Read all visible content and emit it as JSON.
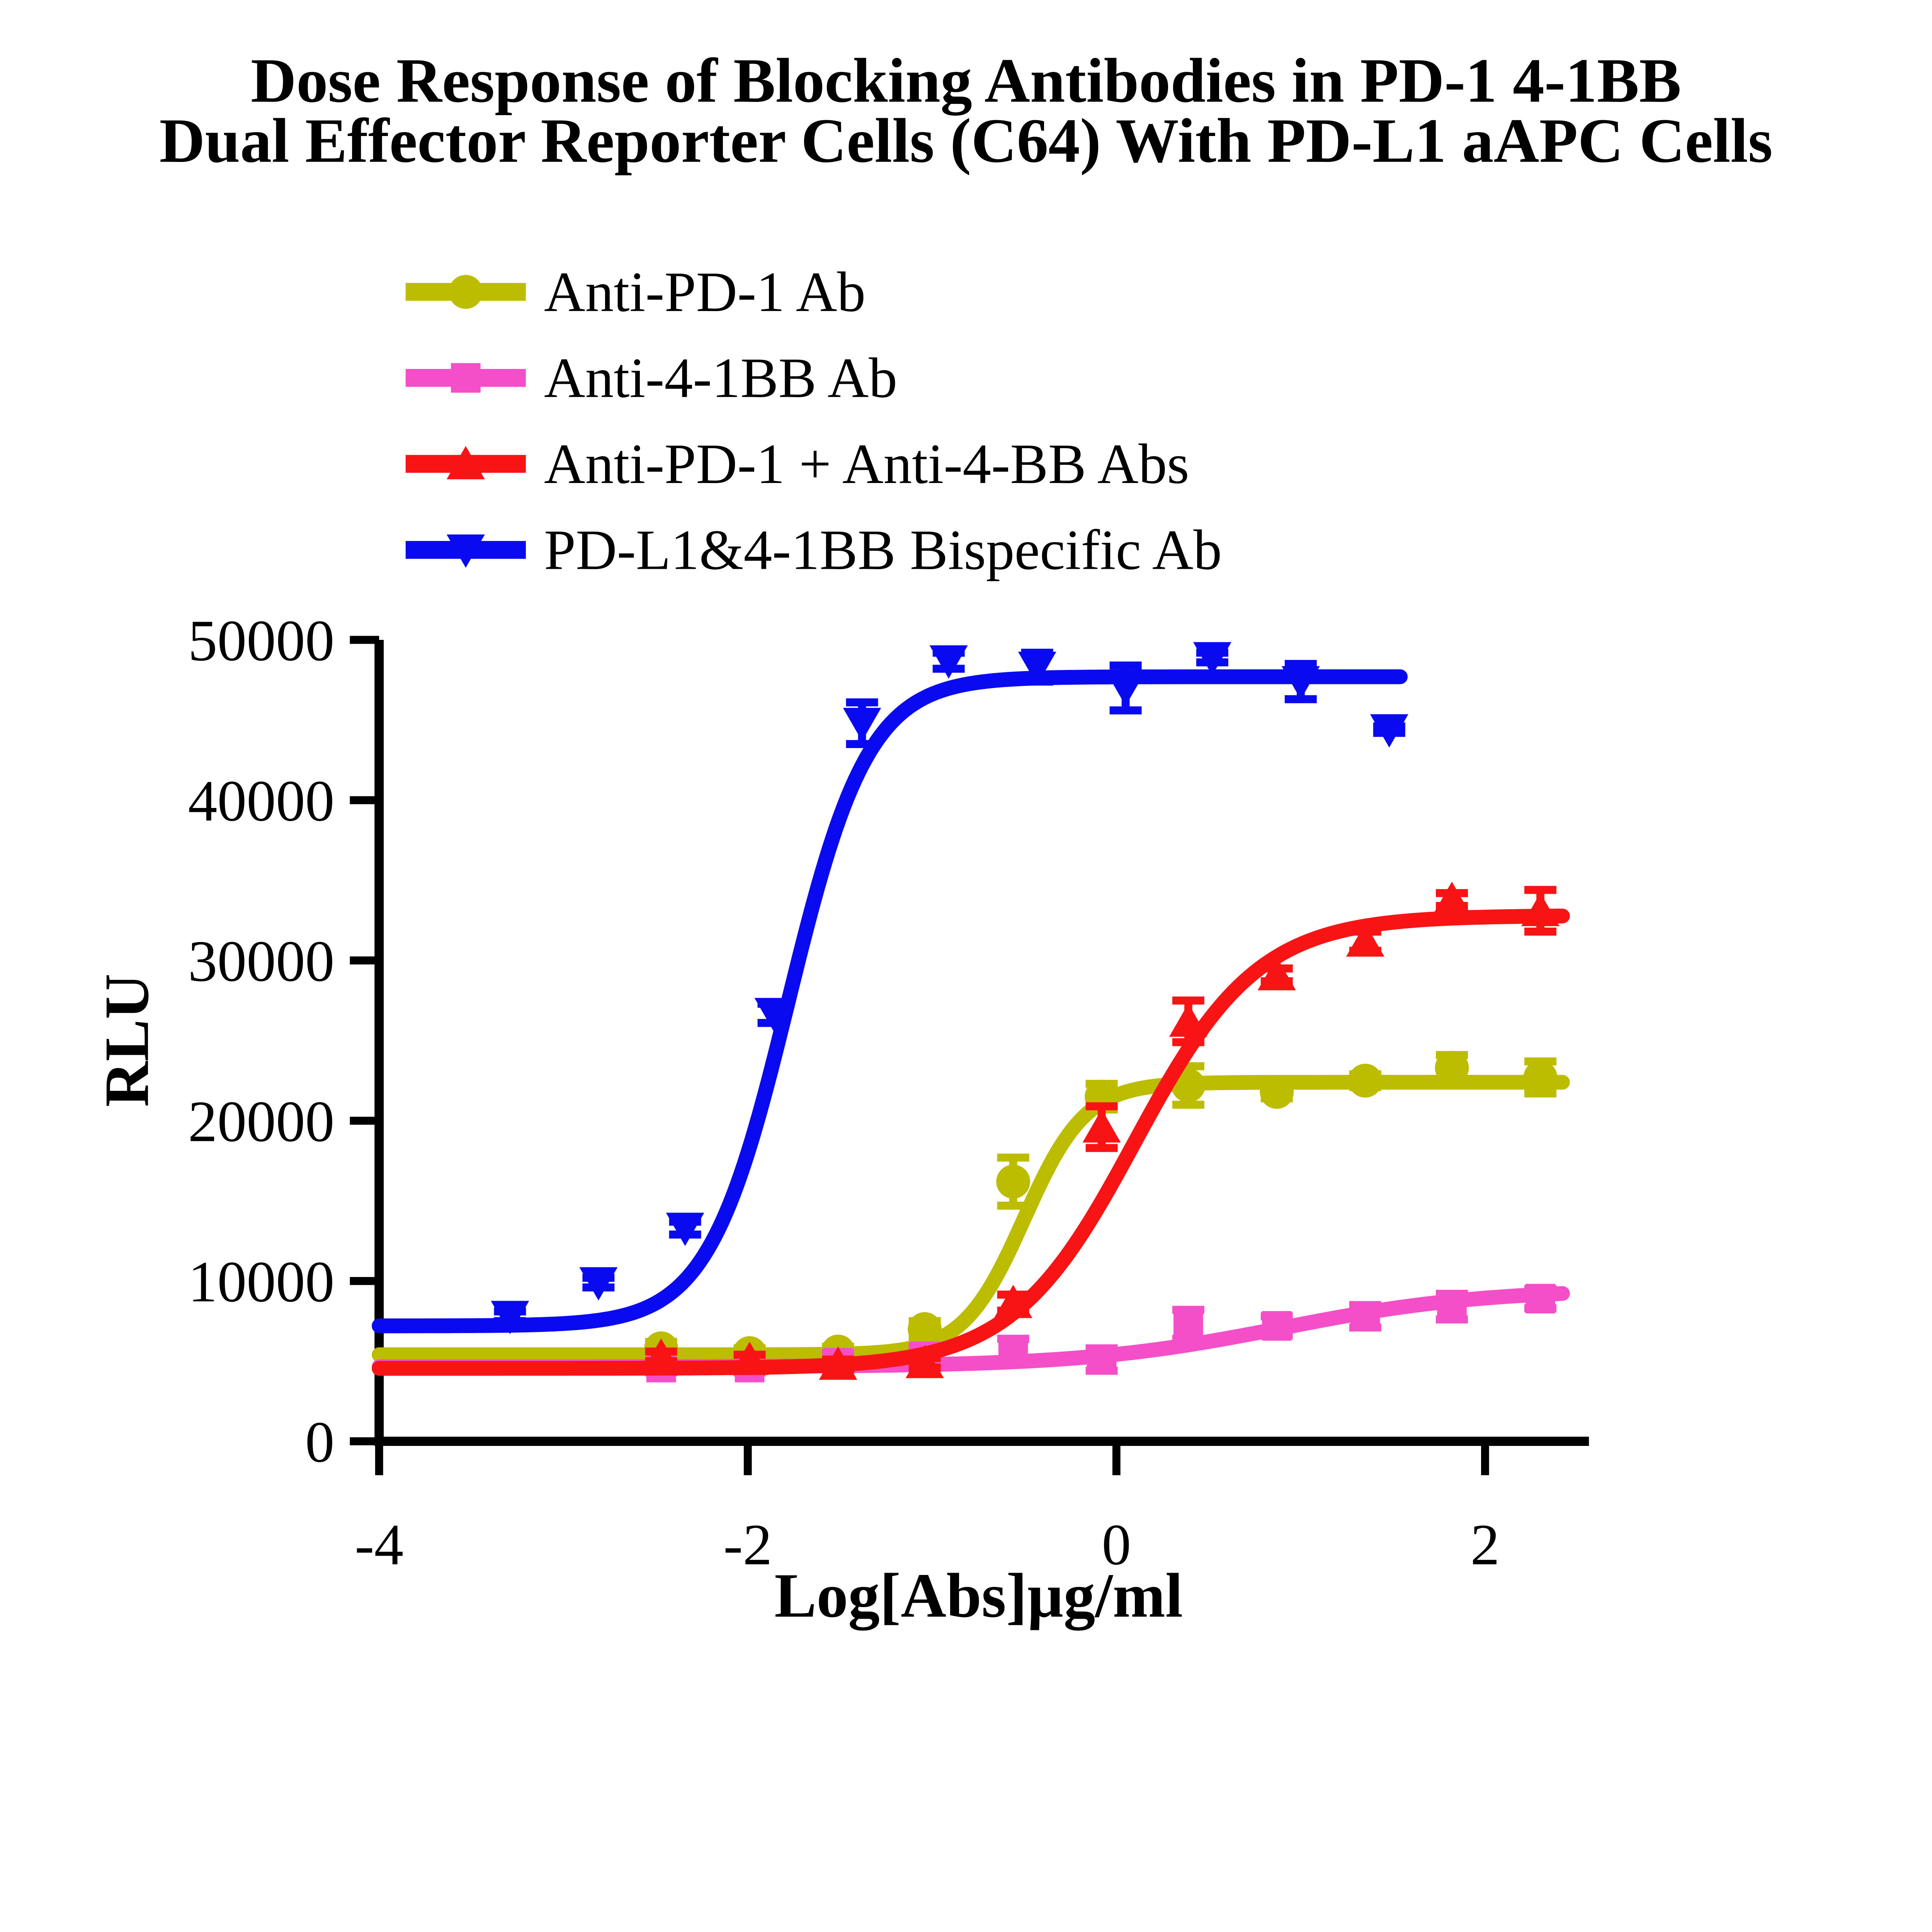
{
  "chart_data": {
    "type": "line",
    "title": "Dose Response of Blocking Antibodies in PD-1 4-1BB Dual Effector Reporter Cells (C64) With PD-L1 aAPC Cells",
    "title_line1": "Dose Response of Blocking Antibodies in PD-1 4-1BB",
    "title_line2": "Dual Effector Reporter Cells (C64) With PD-L1 aAPC Cells",
    "xlabel": "Log[Abs]µg/ml",
    "ylabel": "RLU",
    "xlim": [
      -4,
      2.55
    ],
    "ylim": [
      0,
      50000
    ],
    "xticks": [
      -4,
      -2,
      0,
      2
    ],
    "xtick_labels": [
      "-4",
      "-2",
      "0",
      "2"
    ],
    "yticks": [
      0,
      10000,
      20000,
      30000,
      40000,
      50000
    ],
    "ytick_labels": [
      "0",
      "10000",
      "20000",
      "30000",
      "40000",
      "50000"
    ],
    "grid": false,
    "legend_position": "above-plot-left",
    "axis_color": "#000000",
    "series": [
      {
        "name": "Anti-PD-1 Ab",
        "color": "#BCBC00",
        "marker": "circle",
        "x": [
          -2.47,
          -1.99,
          -1.51,
          -1.04,
          -0.56,
          -0.08,
          0.39,
          0.87,
          1.35,
          1.82,
          2.3
        ],
        "y": [
          5800,
          5500,
          5600,
          7000,
          16200,
          21500,
          22200,
          21800,
          22500,
          23300,
          22700
        ],
        "err": [
          400,
          300,
          300,
          500,
          1500,
          800,
          1200,
          400,
          400,
          800,
          1000
        ],
        "fit": {
          "bottom": 5400,
          "top": 22400,
          "logEC50": -0.5,
          "hill": 2.6,
          "draw_from": -4,
          "draw_to": 2.42
        }
      },
      {
        "name": "Anti-4-1BB Ab",
        "color": "#F44EC9",
        "marker": "square",
        "x": [
          -2.47,
          -1.99,
          -1.51,
          -1.04,
          -0.56,
          -0.08,
          0.39,
          0.87,
          1.35,
          1.82,
          2.3
        ],
        "y": [
          4600,
          4600,
          4900,
          5300,
          5700,
          5100,
          7300,
          7200,
          7800,
          8400,
          8900
        ],
        "err": [
          300,
          300,
          600,
          600,
          700,
          700,
          900,
          600,
          700,
          800,
          600
        ],
        "fit": {
          "bottom": 4650,
          "top": 9500,
          "logEC50": 0.9,
          "hill": 0.8,
          "draw_from": -4,
          "draw_to": 2.42
        }
      },
      {
        "name": "Anti-PD-1 + Anti-4-BB Abs",
        "color": "#F81414",
        "marker": "triangle-up",
        "x": [
          -2.47,
          -1.99,
          -1.51,
          -1.04,
          -0.56,
          -0.08,
          0.39,
          0.87,
          1.35,
          1.82,
          2.3
        ],
        "y": [
          5300,
          5100,
          4800,
          4900,
          8650,
          19600,
          26200,
          29100,
          31200,
          33800,
          33100
        ],
        "err": [
          300,
          300,
          300,
          300,
          500,
          1300,
          1300,
          400,
          600,
          400,
          1300
        ],
        "fit": {
          "bottom": 4550,
          "top": 32800,
          "logEC50": 0.1,
          "hill": 1.3,
          "draw_from": -4,
          "draw_to": 2.42
        }
      },
      {
        "name": "PD-L1&4-1BB Bispecific Ab",
        "color": "#0A0AF0",
        "marker": "triangle-down",
        "x": [
          -3.29,
          -2.81,
          -2.34,
          -1.86,
          -1.38,
          -0.91,
          -0.43,
          0.05,
          0.52,
          1.0,
          1.48
        ],
        "y": [
          7800,
          9900,
          13300,
          26700,
          44800,
          48700,
          48300,
          47000,
          48900,
          47400,
          44400
        ],
        "err": [
          300,
          300,
          400,
          600,
          1300,
          500,
          900,
          1400,
          300,
          1100,
          200
        ],
        "fit": {
          "bottom": 7200,
          "top": 47700,
          "logEC50": -1.78,
          "hill": 2.0,
          "draw_from": -4,
          "draw_to": 1.55
        }
      }
    ]
  }
}
